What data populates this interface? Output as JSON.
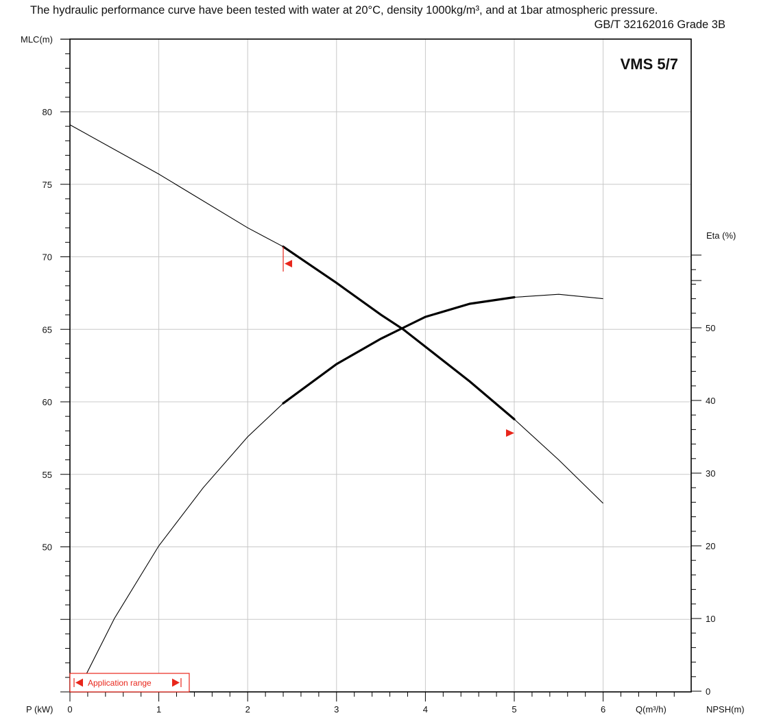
{
  "header": {
    "title": "The hydraulic performance curve have been tested with water at 20°C, density 1000kg/m³, and at 1bar atmospheric pressure.",
    "standard": "GB/T 32162016 Grade 3B"
  },
  "colors": {
    "curve": "#000000",
    "grid": "#c8c8c8",
    "application_marker": "#e8261b"
  },
  "chart_data": {
    "type": "line",
    "model": "VMS 5/7",
    "xlabel": "Q(m³/h)",
    "xlim": [
      0,
      7
    ],
    "x_ticks": [
      0,
      1,
      2,
      3,
      4,
      5,
      6
    ],
    "left_axis": {
      "label": "MLC(m)",
      "ylim": [
        40,
        85
      ],
      "ticks": [
        50,
        55,
        60,
        65,
        70,
        75,
        80
      ]
    },
    "right_axis": {
      "label": "Eta (%)",
      "ylim": [
        0,
        60
      ],
      "ticks": [
        0,
        10,
        20,
        30,
        40,
        50
      ]
    },
    "bottom_labels": {
      "power": "P (kW)",
      "npsh": "NPSH(m)"
    },
    "grid": true,
    "series": [
      {
        "axis": "left",
        "points": [
          [
            0,
            79.1
          ],
          [
            1,
            75.7
          ],
          [
            2,
            72.0
          ],
          [
            2.4,
            70.7
          ],
          [
            3,
            68.2
          ],
          [
            3.5,
            66.0
          ],
          [
            3.75,
            65.0
          ],
          [
            4,
            63.8
          ],
          [
            4.5,
            61.4
          ],
          [
            5,
            58.8
          ],
          [
            5.5,
            56.0
          ],
          [
            6,
            53.0
          ]
        ]
      },
      {
        "axis": "right",
        "points": [
          [
            0.12,
            0.8
          ],
          [
            0.5,
            10.0
          ],
          [
            1,
            20.0
          ],
          [
            1.5,
            28.0
          ],
          [
            2,
            35.0
          ],
          [
            2.4,
            39.6
          ],
          [
            3,
            45.0
          ],
          [
            3.5,
            48.5
          ],
          [
            3.75,
            50.0
          ],
          [
            4,
            51.5
          ],
          [
            4.5,
            53.3
          ],
          [
            5,
            54.2
          ],
          [
            5.5,
            54.6
          ],
          [
            6,
            54.0
          ]
        ]
      }
    ],
    "application_range": {
      "label": "Application range",
      "q_min": 2.4,
      "q_max": 5.0
    }
  }
}
